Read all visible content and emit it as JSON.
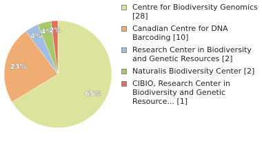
{
  "chart_data": {
    "type": "pie",
    "categories": [
      "Centre for Biodiversity Genomics [28]",
      "Canadian Centre for DNA Barcoding [10]",
      "Research Center in Biodiversity and Genetic Resources [2]",
      "Naturalis Biodiversity Center [2]",
      "CIBIO, Research Center in Biodiversity and Genetic Resource... [1]"
    ],
    "values": [
      65,
      23,
      4,
      4,
      2
    ],
    "value_labels": [
      "65%",
      "23%",
      "4%",
      "4%",
      "2%"
    ],
    "colors": [
      "#dce39c",
      "#f0ad73",
      "#a4bde4",
      "#a6c96d",
      "#e0705b"
    ]
  }
}
